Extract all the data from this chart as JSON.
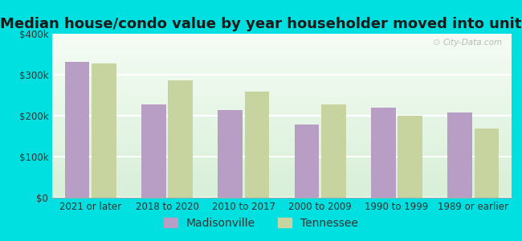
{
  "title": "Median house/condo value by year householder moved into unit",
  "categories": [
    "2021 or later",
    "2018 to 2020",
    "2010 to 2017",
    "2000 to 2009",
    "1990 to 1999",
    "1989 or earlier"
  ],
  "madisonville": [
    332000,
    228000,
    213000,
    178000,
    220000,
    207000
  ],
  "tennessee": [
    328000,
    287000,
    258000,
    228000,
    200000,
    168000
  ],
  "bar_color_madison": "#b89ec4",
  "bar_color_tennessee": "#c8d4a0",
  "background_outer": "#00e0e0",
  "ylim": [
    0,
    400000
  ],
  "yticks": [
    0,
    100000,
    200000,
    300000,
    400000
  ],
  "ytick_labels": [
    "$0",
    "$100k",
    "$200k",
    "$300k",
    "$400k"
  ],
  "legend_labels": [
    "Madisonville",
    "Tennessee"
  ],
  "watermark": "City-Data.com",
  "title_fontsize": 13,
  "tick_fontsize": 8.5,
  "legend_fontsize": 10
}
